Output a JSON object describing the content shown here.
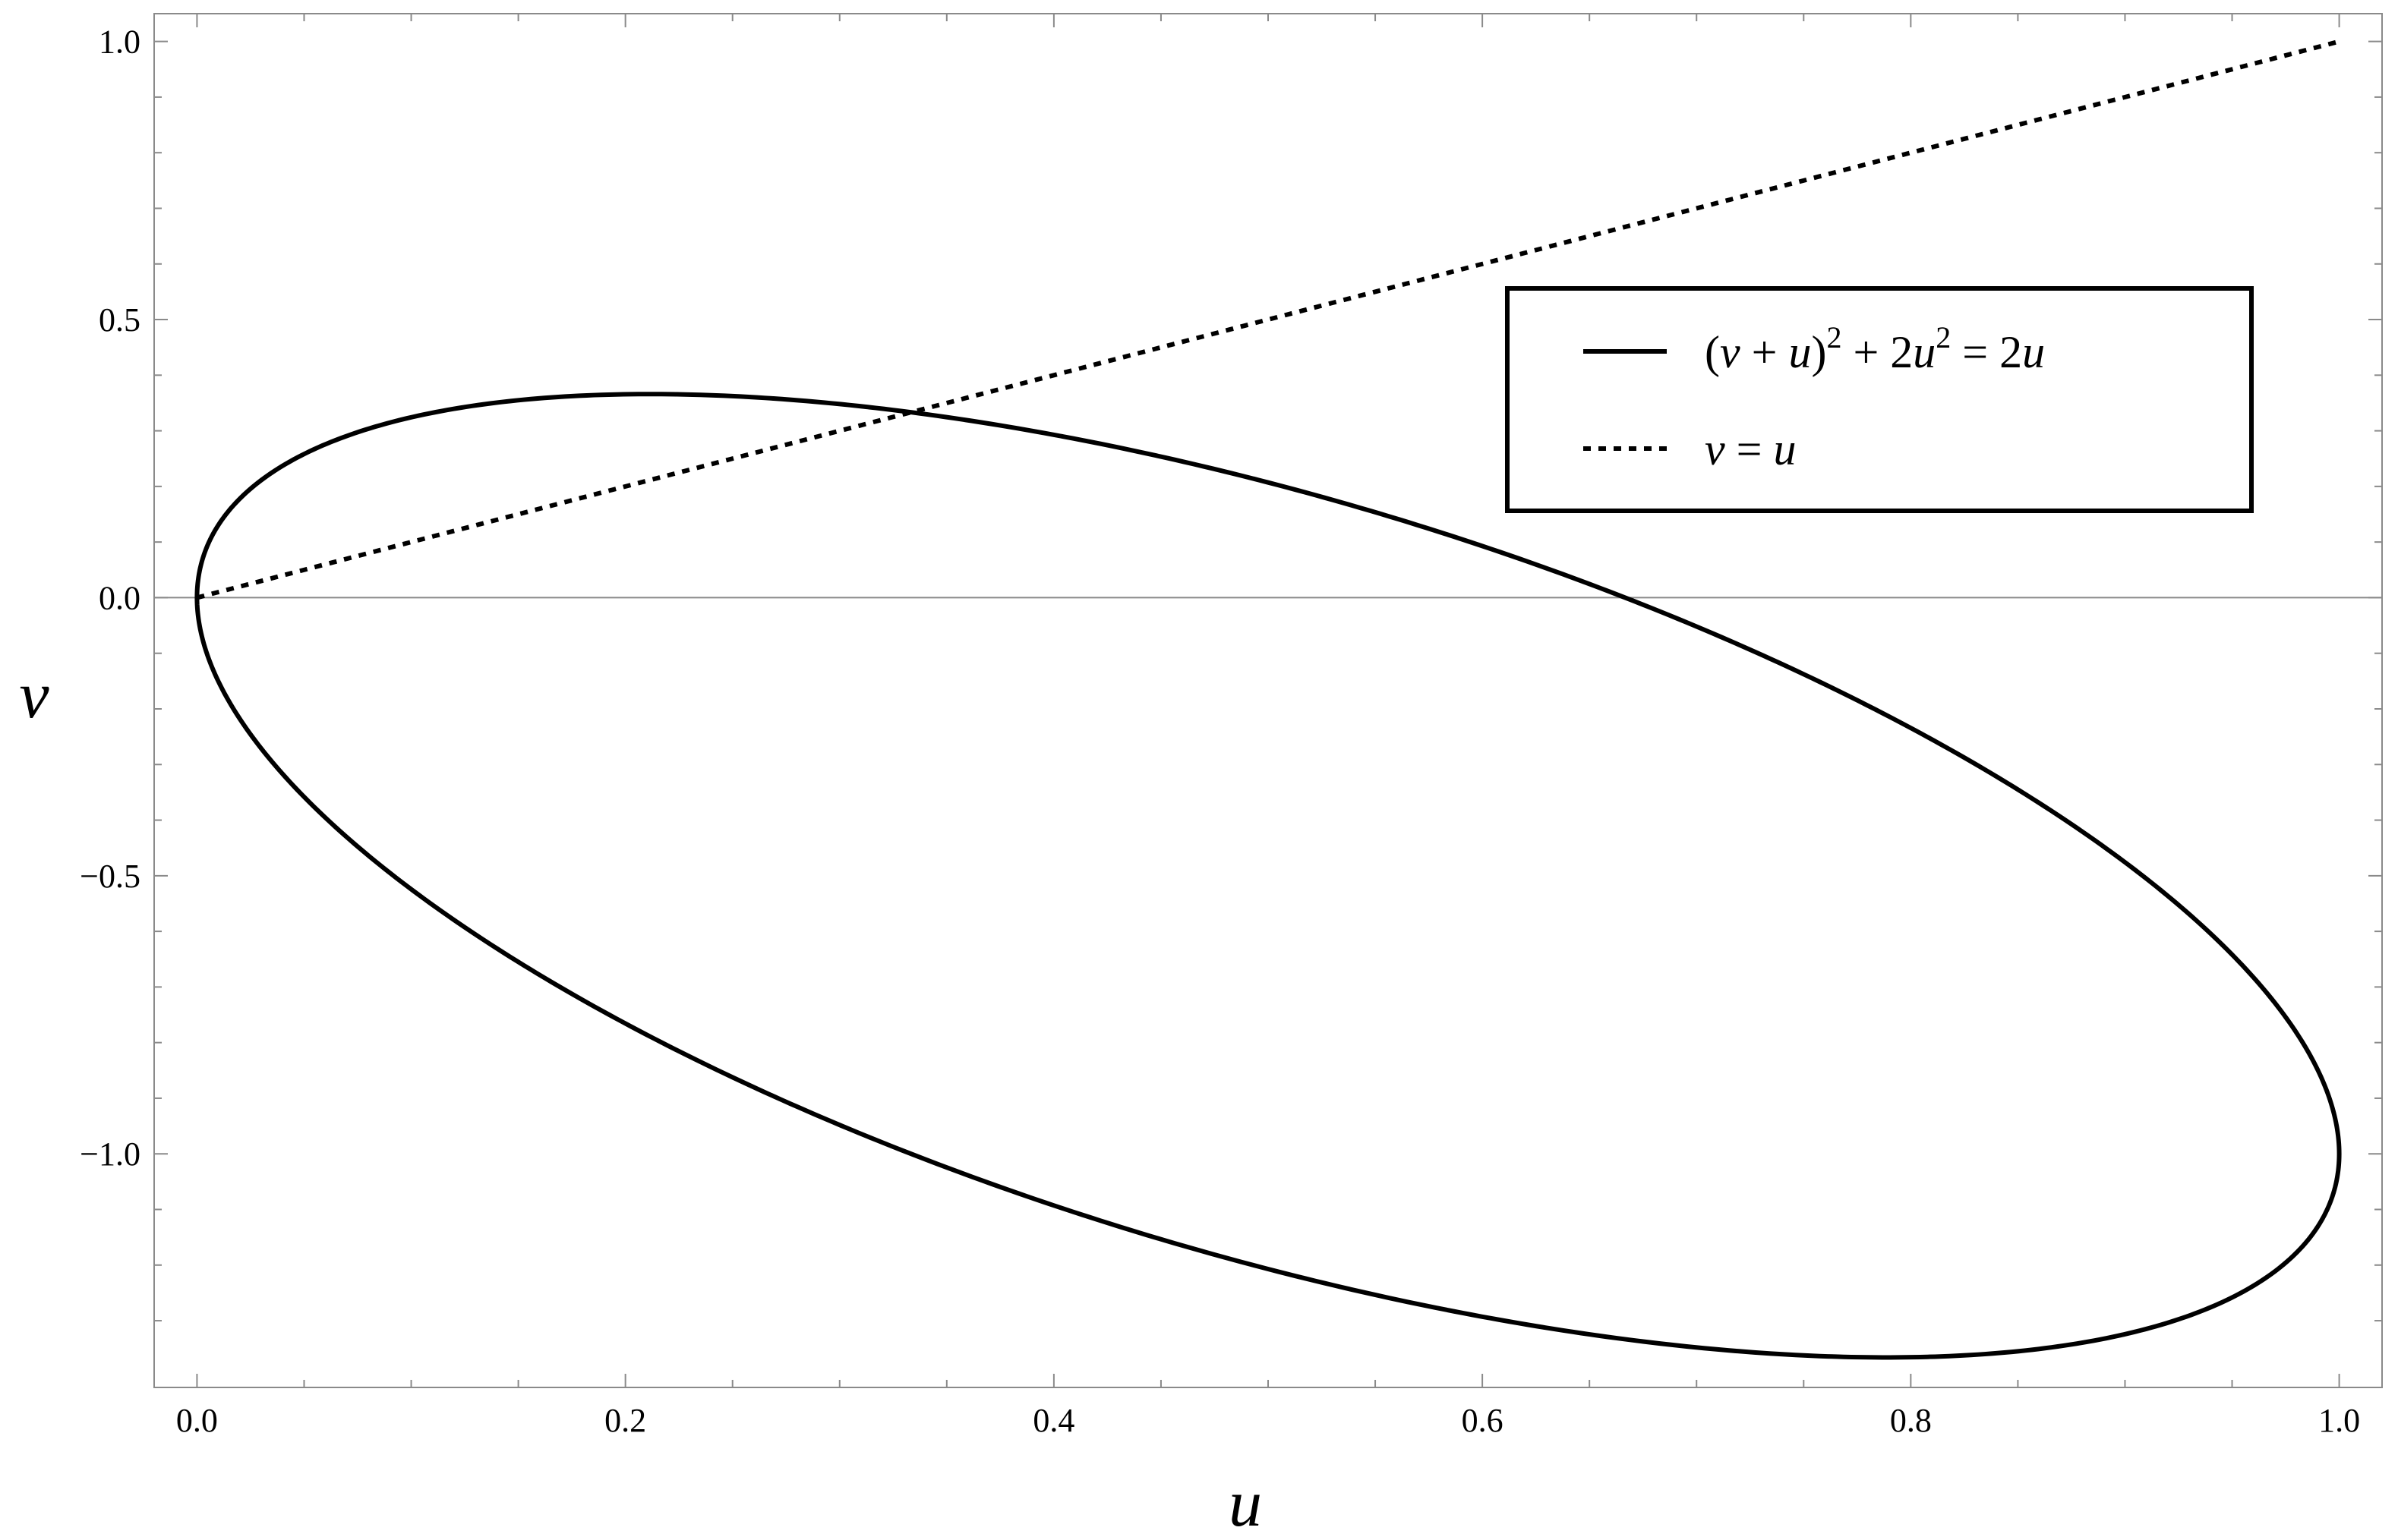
{
  "chart_data": {
    "type": "line",
    "xlabel": "u",
    "ylabel": "v",
    "xlim": [
      -0.02,
      1.02
    ],
    "ylim": [
      -1.42,
      1.05
    ],
    "x_ticks": [
      0.0,
      0.2,
      0.4,
      0.6,
      0.8,
      1.0
    ],
    "x_tick_labels": [
      "0.0",
      "0.2",
      "0.4",
      "0.6",
      "0.8",
      "1.0"
    ],
    "y_ticks": [
      -1.0,
      -0.5,
      0.0,
      0.5,
      1.0
    ],
    "y_tick_labels": [
      "−1.0",
      "−0.5",
      "0.0",
      "0.5",
      "1.0"
    ],
    "grid": false,
    "zero_line": true,
    "legend_position": "upper-right",
    "series": [
      {
        "name": "(v + u)^2 + 2u^2 = 2u",
        "style": "solid",
        "color": "#000000",
        "points": [
          [
            0.0,
            0.0
          ],
          [
            0.01,
            0.131
          ],
          [
            0.025,
            0.196
          ],
          [
            0.05,
            0.258
          ],
          [
            0.1,
            0.323
          ],
          [
            0.15,
            0.355
          ],
          [
            0.2,
            0.366
          ],
          [
            0.25,
            0.362
          ],
          [
            0.3,
            0.348
          ],
          [
            0.35,
            0.323
          ],
          [
            0.4,
            0.293
          ],
          [
            0.45,
            0.256
          ],
          [
            0.5,
            0.207
          ],
          [
            0.55,
            0.15
          ],
          [
            0.6,
            0.093
          ],
          [
            0.65,
            0.024
          ],
          [
            0.7,
            -0.052
          ],
          [
            0.75,
            -0.138
          ],
          [
            0.8,
            -0.234
          ],
          [
            0.85,
            -0.346
          ],
          [
            0.9,
            -0.479
          ],
          [
            0.95,
            -0.65
          ],
          [
            0.98,
            -0.779
          ],
          [
            1.0,
            -1.0
          ],
          [
            0.98,
            -1.181
          ],
          [
            0.95,
            -1.25
          ],
          [
            0.9,
            -1.321
          ],
          [
            0.85,
            -1.354
          ],
          [
            0.8,
            -1.366
          ],
          [
            0.75,
            -1.362
          ],
          [
            0.7,
            -1.348
          ],
          [
            0.65,
            -1.324
          ],
          [
            0.6,
            -1.293
          ],
          [
            0.55,
            -1.25
          ],
          [
            0.5,
            -1.207
          ],
          [
            0.45,
            -1.156
          ],
          [
            0.4,
            -1.093
          ],
          [
            0.35,
            -1.023
          ],
          [
            0.3,
            -0.948
          ],
          [
            0.25,
            -0.862
          ],
          [
            0.2,
            -0.766
          ],
          [
            0.15,
            -0.655
          ],
          [
            0.1,
            -0.523
          ],
          [
            0.05,
            -0.358
          ],
          [
            0.025,
            -0.246
          ],
          [
            0.01,
            -0.151
          ],
          [
            0.0,
            0.0
          ]
        ]
      },
      {
        "name": "v = u",
        "style": "dotted",
        "color": "#000000",
        "points": [
          [
            0.0,
            0.0
          ],
          [
            1.0,
            1.0
          ]
        ]
      }
    ]
  }
}
